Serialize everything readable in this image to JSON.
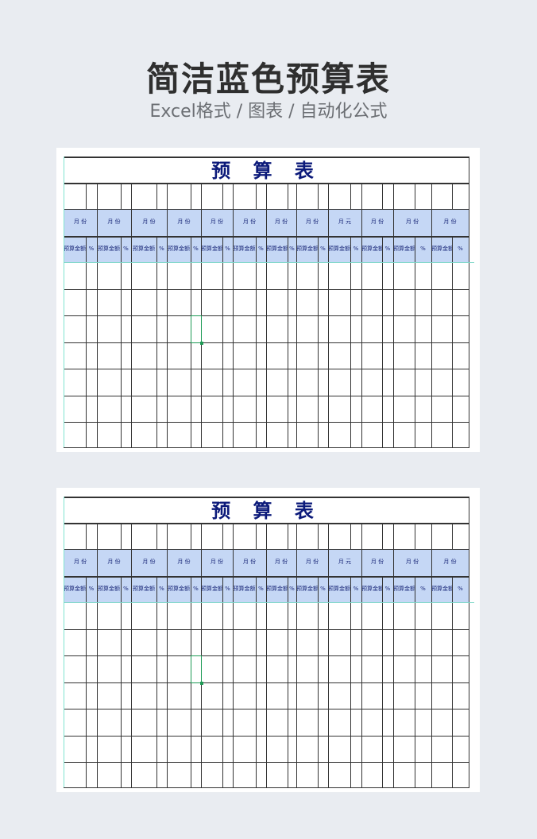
{
  "heading": {
    "title": "简洁蓝色预算表",
    "subtitle": "Excel格式 / 图表 / 自动化公式"
  },
  "sheets": [
    {
      "title": "预 算 表",
      "months": [
        "月 份",
        "月 份",
        "月 份",
        "月 份",
        "月 份",
        "月 份",
        "月 份",
        "月 份",
        "月 元",
        "月 份",
        "月 份",
        "月 份"
      ],
      "sub_headers": [
        "预算金额",
        "%"
      ],
      "data_rows": 7
    },
    {
      "title": "预 算 表",
      "months": [
        "月 份",
        "月 份",
        "月 份",
        "月 份",
        "月 份",
        "月 份",
        "月 份",
        "月 份",
        "月 元",
        "月 份",
        "月 份",
        "月 份"
      ],
      "sub_headers": [
        "预算金额",
        "%"
      ],
      "data_rows": 7
    }
  ],
  "colors": {
    "header_band": "#c5d7f5",
    "title": "#0c1a7a",
    "selection": "#1e9a55"
  }
}
